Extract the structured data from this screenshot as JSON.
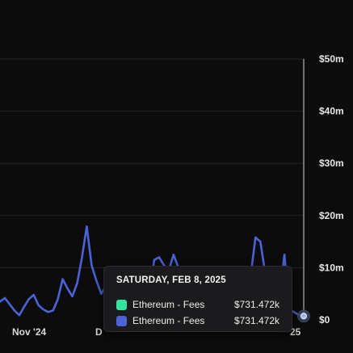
{
  "chart_data": {
    "type": "line",
    "x_tick_labels": [
      "Nov '24",
      "D",
      "25"
    ],
    "y_tick_labels": [
      "$50m",
      "$40m",
      "$30m",
      "$20m",
      "$10m",
      "$0"
    ],
    "ylim": [
      0,
      50000000
    ],
    "grid": true,
    "series": [
      {
        "name": "Ethereum - Fees",
        "color": "#4b63d6",
        "values": [
          3.5,
          4.2,
          3.0,
          1.8,
          0.9,
          2.5,
          4.0,
          4.8,
          2.8,
          2.0,
          1.5,
          1.8,
          4.0,
          7.8,
          6.0,
          4.5,
          7.0,
          12.0,
          17.9,
          10.5,
          7.5,
          5.0,
          6.5,
          5.2,
          7.5,
          5.0,
          5.8,
          6.5,
          5.0,
          5.5,
          7.5,
          5.0,
          11.5,
          12.0,
          10.5,
          9.5,
          12.5,
          10.0,
          8.5,
          9.0,
          8.0,
          9.0,
          8.5,
          9.5,
          8.0,
          9.0,
          8.5,
          10.0,
          8.5,
          9.0,
          8.0,
          9.5,
          8.5,
          15.8,
          15.0,
          9.0,
          7.0,
          5.5,
          4.8,
          12.5,
          2.0,
          1.5,
          0.9,
          0.73
        ]
      }
    ]
  },
  "tooltip": {
    "date": "SATURDAY, FEB 8, 2025",
    "rows": [
      {
        "name": "Ethereum - Fees",
        "value": "$731.472k",
        "color": "#34e3a0"
      },
      {
        "name": "Ethereum - Fees",
        "value": "$731.472k",
        "color": "#4b63d6"
      }
    ]
  }
}
